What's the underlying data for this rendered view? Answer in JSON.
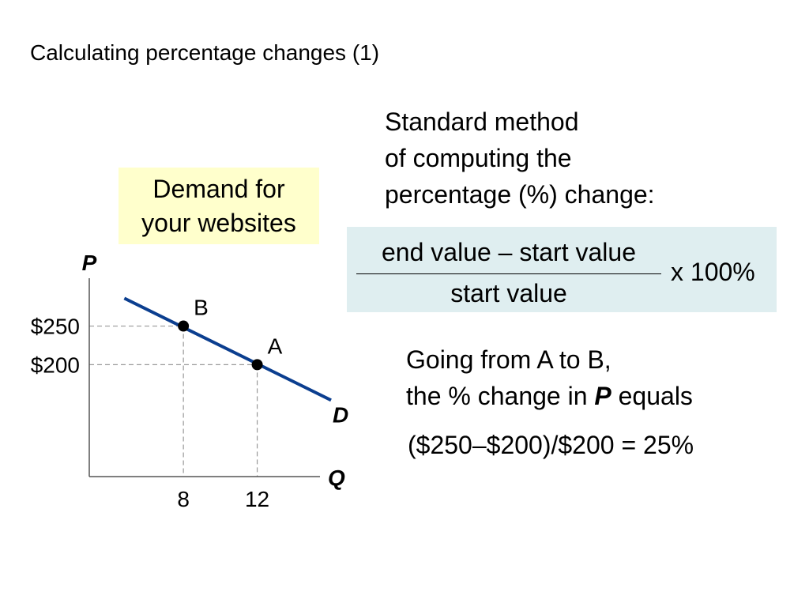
{
  "slide": {
    "title": "Calculating percentage changes (1)",
    "method_lines": [
      "Standard method",
      "of computing the",
      "percentage (%) change:"
    ],
    "legend_lines": [
      "Demand for",
      "your websites"
    ],
    "formula": {
      "numerator": "end value – start value",
      "denominator": "start value",
      "multiplier": "x 100%"
    },
    "going": {
      "line1": "Going from A to B,",
      "line2_pre": "the % change in ",
      "line2_var": "P",
      "line2_post": " equals"
    },
    "calculation": "($250–$200)/$200 = 25%"
  },
  "colors": {
    "demand_line": "#0b3e8f",
    "legend_bg": "#ffffcc",
    "formula_bg": "#dfeef0"
  },
  "chart_data": {
    "type": "line",
    "xlabel": "Q",
    "ylabel": "P",
    "x_ticks": [
      {
        "value": 8,
        "label": "8"
      },
      {
        "value": 12,
        "label": "12"
      }
    ],
    "y_ticks": [
      {
        "value": 250,
        "label": "$250"
      },
      {
        "value": 200,
        "label": "$200"
      }
    ],
    "xlim": [
      2.9,
      15.4
    ],
    "ylim": [
      55,
      312
    ],
    "series": [
      {
        "name": "D",
        "x": [
          4.8,
          16.0
        ],
        "y": [
          286,
          154
        ]
      }
    ],
    "points": [
      {
        "label": "B",
        "x": 8,
        "y": 250
      },
      {
        "label": "A",
        "x": 12,
        "y": 200
      }
    ],
    "grid": false
  }
}
